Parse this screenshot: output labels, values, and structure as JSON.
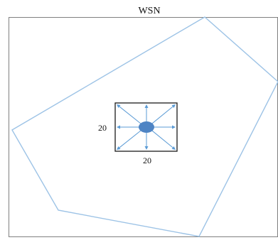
{
  "diagram": {
    "title": "WSN",
    "width_label": "20",
    "height_label": "20",
    "colors": {
      "frame": "#808080",
      "boundary": "#9dc3e6",
      "box_border": "#1a1a1a",
      "arrow": "#5b9bd5",
      "node_fill": "#4e84c4",
      "text": "#111111"
    }
  }
}
